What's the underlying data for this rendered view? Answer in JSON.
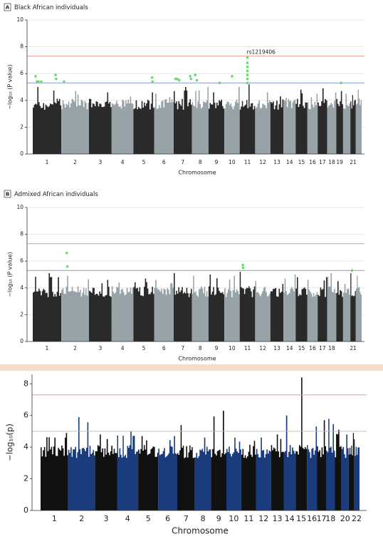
{
  "chart_data": [
    {
      "type": "manhattan",
      "panel_label": "A",
      "title": "Black African individuals",
      "x_label": "Chromosome",
      "y_label": "−log₁₀ (P value)",
      "categories": [
        "1",
        "2",
        "3",
        "4",
        "5",
        "6",
        "7",
        "8",
        "9",
        "10",
        "11",
        "12",
        "13",
        "14",
        "15",
        "16",
        "17",
        "18",
        "19",
        null,
        "21",
        null
      ],
      "values": [
        5.0,
        4.7,
        4.6,
        4.3,
        4.6,
        4.5,
        5.0,
        5.0,
        4.6,
        5.0,
        5.2,
        4.6,
        4.3,
        4.2,
        4.8,
        4.5,
        4.9,
        4.6,
        4.7,
        4.5,
        4.4,
        4.8
      ],
      "colors": [
        "#2a2a2a",
        "#98a3a8"
      ],
      "series": [
        {
          "color": "#66dd66",
          "x": [
            1.1,
            1.15,
            1.2,
            1.3,
            1.8,
            1.82,
            2.1,
            5.9,
            5.92,
            7.1,
            7.2,
            7.3,
            7.9,
            7.95,
            8.2,
            8.3,
            9.7,
            10.5,
            11.5,
            11.5,
            11.5,
            11.5,
            11.5,
            11.5,
            11.5,
            19.7
          ],
          "values": [
            5.8,
            5.4,
            5.4,
            5.4,
            5.9,
            5.6,
            5.4,
            5.7,
            5.4,
            5.6,
            5.6,
            5.5,
            5.8,
            5.6,
            5.9,
            5.5,
            5.3,
            5.8,
            7.2,
            6.8,
            6.5,
            6.2,
            5.9,
            5.6,
            5.3,
            5.3
          ]
        }
      ],
      "annotations": [
        {
          "text": "rs1219406",
          "x": 11.5,
          "y": 7.2
        }
      ],
      "hlines": [
        {
          "value": 7.3,
          "color": "#e39a9a"
        },
        {
          "value": 5.3,
          "color": "#7a8fcc"
        }
      ],
      "ylim": [
        0,
        10
      ],
      "yticks": [
        0,
        2,
        4,
        6,
        8,
        10
      ],
      "grid": true
    },
    {
      "type": "manhattan",
      "panel_label": "B",
      "title": "Admixed African individuals",
      "x_label": "Chromosome",
      "y_label": "−log₁₀ (P value)",
      "categories": [
        "1",
        "2",
        "3",
        "4",
        "5",
        "6",
        "7",
        "8",
        "9",
        "10",
        "11",
        "12",
        "13",
        "14",
        "15",
        "16",
        "17",
        "18",
        null,
        null,
        "21",
        null
      ],
      "values": [
        5.1,
        4.9,
        4.6,
        4.4,
        4.7,
        4.6,
        5.1,
        4.9,
        5.0,
        4.9,
        5.2,
        4.5,
        4.3,
        5.0,
        4.8,
        4.6,
        4.8,
        5.1,
        4.5,
        4.3,
        5.1,
        4.9
      ],
      "colors": [
        "#2a2a2a",
        "#98a3a8"
      ],
      "series": [
        {
          "color": "#66dd66",
          "x": [
            2.2,
            2.22,
            11.2,
            11.22,
            21.3
          ],
          "values": [
            6.6,
            5.6,
            5.7,
            5.5,
            5.3
          ]
        }
      ],
      "hlines": [
        {
          "value": 7.3,
          "color": "#b0b0b0"
        },
        {
          "value": 5.3,
          "color": "#7a8fcc"
        }
      ],
      "ylim": [
        0,
        10
      ],
      "yticks": [
        0,
        2,
        4,
        6,
        8,
        10
      ],
      "grid": true
    },
    {
      "type": "manhattan",
      "x_label": "Chromosome",
      "y_label": "−log₁₀(p)",
      "categories": [
        "1",
        "2",
        "3",
        "4",
        "5",
        "6",
        "7",
        "8",
        "9",
        "10",
        "11",
        "12",
        "13",
        "14",
        "15",
        "16",
        "17",
        "18",
        null,
        "20",
        null,
        "22"
      ],
      "values": [
        4.9,
        5.9,
        4.8,
        5.0,
        4.7,
        4.7,
        5.4,
        4.6,
        6.3,
        4.6,
        4.4,
        4.6,
        4.8,
        6.0,
        8.4,
        5.3,
        5.7,
        5.8,
        5.1,
        4.8,
        4.9,
        4.5
      ],
      "colors": [
        "#111111",
        "#1a3b7c"
      ],
      "hlines": [
        {
          "value": 7.3,
          "color": "#e39a9a"
        },
        {
          "value": 5,
          "color": "#b8b8b8"
        }
      ],
      "ylim": [
        0,
        8.6
      ],
      "yticks": [
        0,
        2,
        4,
        6,
        8
      ],
      "grid": false
    }
  ]
}
